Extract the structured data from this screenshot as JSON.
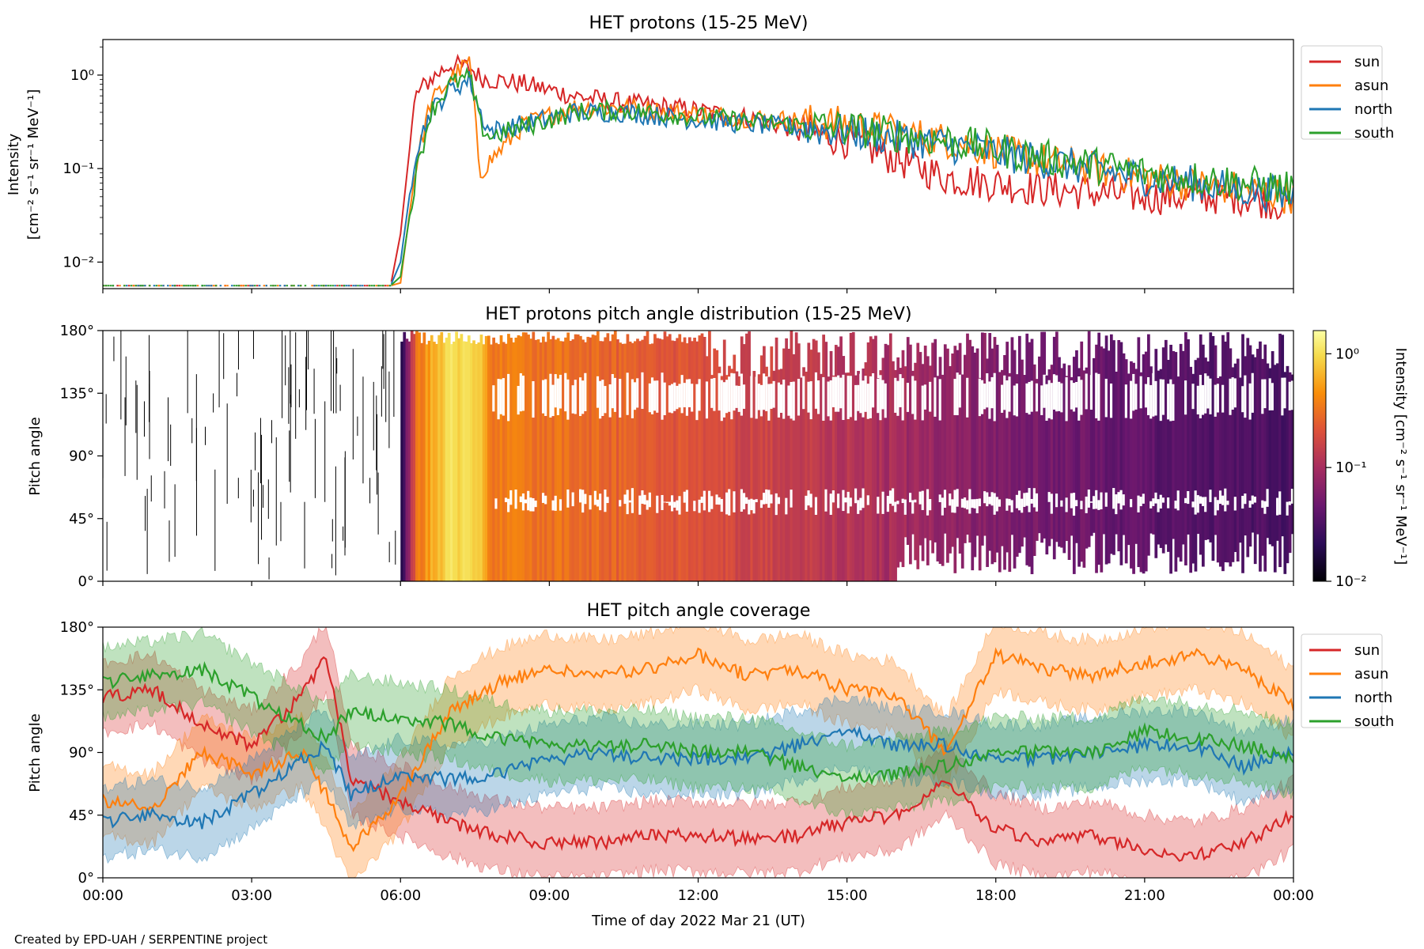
{
  "figure": {
    "credit": "Created by EPD-UAH / SERPENTINE project",
    "xlabel": "Time of day 2022 Mar 21 (UT)",
    "xticks": [
      "00:00",
      "03:00",
      "06:00",
      "09:00",
      "12:00",
      "15:00",
      "18:00",
      "21:00",
      "00:00"
    ]
  },
  "colors": {
    "sun": "#d62728",
    "asun": "#ff7f0e",
    "north": "#1f77b4",
    "south": "#2ca02c"
  },
  "chart_data": [
    {
      "type": "line",
      "title": "HET protons (15-25 MeV)",
      "ylabel_line1": "Intensity",
      "ylabel_line2": "[cm⁻² s⁻¹ sr⁻¹ MeV⁻¹]",
      "yscale": "log",
      "ylim": [
        0.0052,
        2.4
      ],
      "xlim": [
        0,
        24
      ],
      "yticks": [
        {
          "v": 1,
          "label": "10⁰"
        },
        {
          "v": 0.1,
          "label": "10⁻¹"
        },
        {
          "v": 0.01,
          "label": "10⁻²"
        }
      ],
      "legend": [
        "sun",
        "asun",
        "north",
        "south"
      ],
      "legend_position": "outside-right",
      "x": [
        0,
        5.8,
        6.0,
        6.3,
        6.6,
        7.0,
        7.4,
        7.6,
        7.8,
        8.5,
        9.5,
        10.5,
        11.5,
        13,
        15,
        17,
        19,
        21,
        23,
        24
      ],
      "series": [
        {
          "name": "sun",
          "values": [
            0.0056,
            0.0056,
            0.02,
            0.6,
            0.9,
            1.3,
            1.2,
            0.95,
            0.9,
            0.8,
            0.6,
            0.5,
            0.45,
            0.35,
            0.2,
            0.08,
            0.06,
            0.05,
            0.05,
            0.04
          ]
        },
        {
          "name": "asun",
          "values": [
            0.0056,
            0.0056,
            0.006,
            0.1,
            0.5,
            0.9,
            1.4,
            0.09,
            0.12,
            0.3,
            0.45,
            0.45,
            0.4,
            0.35,
            0.3,
            0.2,
            0.12,
            0.08,
            0.06,
            0.05
          ]
        },
        {
          "name": "north",
          "values": [
            0.0056,
            0.0056,
            0.01,
            0.15,
            0.4,
            0.7,
            0.9,
            0.4,
            0.25,
            0.3,
            0.4,
            0.4,
            0.35,
            0.3,
            0.25,
            0.18,
            0.12,
            0.08,
            0.06,
            0.05
          ]
        },
        {
          "name": "south",
          "values": [
            0.0056,
            0.0056,
            0.007,
            0.08,
            0.4,
            0.8,
            0.95,
            0.3,
            0.22,
            0.28,
            0.4,
            0.42,
            0.38,
            0.32,
            0.27,
            0.2,
            0.13,
            0.09,
            0.07,
            0.06
          ]
        }
      ]
    },
    {
      "type": "heatmap",
      "title": "HET protons pitch angle distribution (15-25 MeV)",
      "ylabel": "Pitch angle",
      "ylim": [
        0,
        180
      ],
      "xlim": [
        0,
        24
      ],
      "yticks": [
        "0°",
        "45°",
        "90°",
        "135°",
        "180°"
      ],
      "colorbar": {
        "label": "Intensity [cm⁻² s⁻¹ sr⁻¹ MeV⁻¹]",
        "scale": "log",
        "range": [
          0.01,
          1.6
        ],
        "ticks": [
          {
            "v": 1,
            "label": "10⁰"
          },
          {
            "v": 0.1,
            "label": "10⁻¹"
          },
          {
            "v": 0.01,
            "label": "10⁻²"
          }
        ],
        "colormap": "inferno"
      },
      "intensity_profile_x": [
        0,
        6.0,
        6.3,
        6.6,
        7.0,
        7.6,
        7.8,
        9.5,
        12,
        15,
        18,
        21,
        24
      ],
      "intensity_profile_values": [
        0.01,
        0.02,
        0.3,
        0.6,
        1.0,
        0.9,
        0.35,
        0.3,
        0.2,
        0.12,
        0.06,
        0.04,
        0.03
      ],
      "gaps_deg": [
        [
          120,
          145
        ],
        [
          52,
          62
        ]
      ]
    },
    {
      "type": "line",
      "title": "HET pitch angle coverage",
      "ylabel": "Pitch angle",
      "ylim": [
        0,
        180
      ],
      "xlim": [
        0,
        24
      ],
      "yticks": [
        "0°",
        "45°",
        "90°",
        "135°",
        "180°"
      ],
      "legend": [
        "sun",
        "asun",
        "north",
        "south"
      ],
      "legend_position": "outside-right",
      "band_halfwidth_deg": 25,
      "x": [
        0,
        1,
        2,
        3,
        4,
        4.5,
        5,
        6,
        7,
        8,
        9,
        10,
        11,
        12,
        13,
        14,
        15,
        16,
        17,
        18,
        19,
        20,
        21,
        22,
        23,
        24
      ],
      "series": [
        {
          "name": "sun",
          "values": [
            130,
            135,
            110,
            95,
            130,
            160,
            70,
            55,
            40,
            30,
            25,
            25,
            30,
            30,
            28,
            30,
            40,
            45,
            70,
            35,
            25,
            30,
            20,
            15,
            25,
            45
          ]
        },
        {
          "name": "asun",
          "values": [
            55,
            50,
            90,
            75,
            90,
            60,
            20,
            60,
            120,
            140,
            150,
            145,
            150,
            160,
            145,
            150,
            135,
            130,
            90,
            160,
            150,
            145,
            155,
            160,
            150,
            125
          ]
        },
        {
          "name": "north",
          "values": [
            40,
            45,
            40,
            60,
            85,
            95,
            60,
            75,
            70,
            75,
            85,
            90,
            85,
            85,
            85,
            95,
            105,
            95,
            95,
            85,
            85,
            90,
            95,
            95,
            80,
            90
          ]
        },
        {
          "name": "south",
          "values": [
            140,
            145,
            150,
            130,
            110,
            100,
            120,
            115,
            110,
            100,
            95,
            95,
            95,
            90,
            90,
            80,
            70,
            75,
            80,
            90,
            90,
            90,
            105,
            100,
            95,
            85
          ]
        }
      ]
    }
  ]
}
